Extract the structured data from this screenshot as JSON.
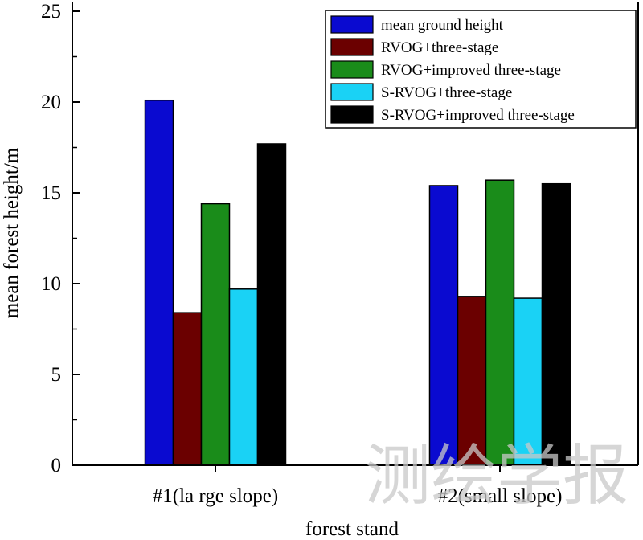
{
  "chart_data": {
    "type": "bar",
    "title": "",
    "xlabel": "forest stand",
    "ylabel": "mean forest height/m",
    "categories": [
      "#1(la rge slope)",
      "#2(small slope)"
    ],
    "ylim": [
      0,
      25
    ],
    "yticks": [
      0,
      5,
      10,
      15,
      20,
      25
    ],
    "grid": false,
    "legend_position": "top-right",
    "series": [
      {
        "name": "mean ground height",
        "color": "#0a0ad0",
        "values": [
          20.1,
          15.4
        ]
      },
      {
        "name": "RVOG+three-stage",
        "color": "#6b0000",
        "values": [
          8.4,
          9.3
        ]
      },
      {
        "name": "RVOG+improved three-stage",
        "color": "#1a8c1a",
        "values": [
          14.4,
          15.7
        ]
      },
      {
        "name": "S-RVOG+three-stage",
        "color": "#1ad2f5",
        "values": [
          9.7,
          9.2
        ]
      },
      {
        "name": "S-RVOG+improved three-stage",
        "color": "#000000",
        "values": [
          17.7,
          15.5
        ]
      }
    ]
  },
  "watermark": "测绘学报"
}
